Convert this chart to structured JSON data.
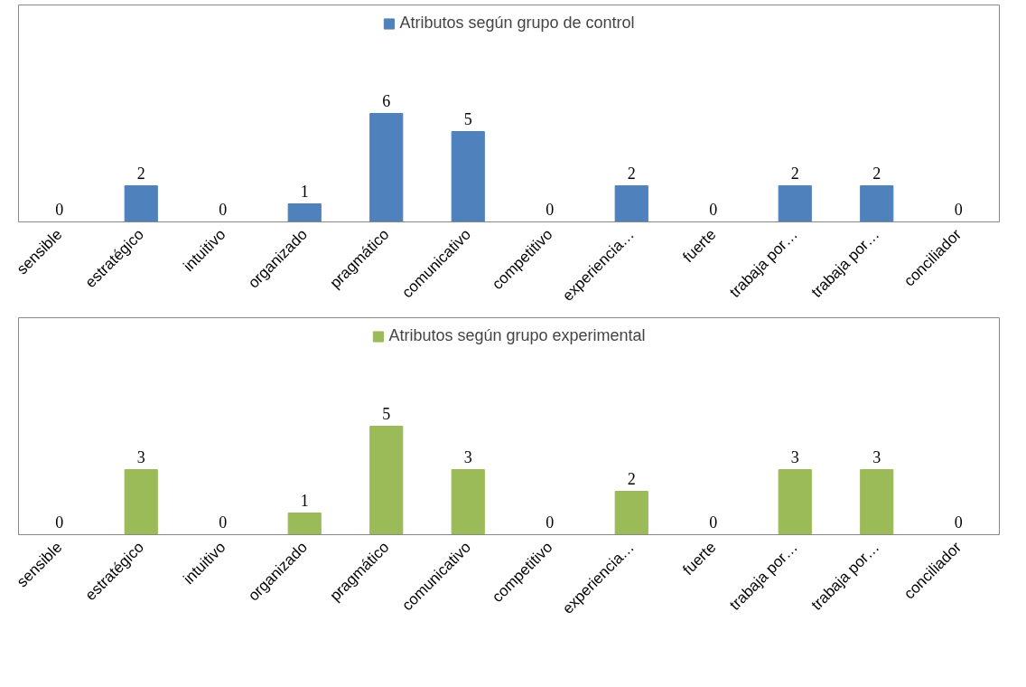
{
  "chart_data": [
    {
      "type": "bar",
      "categories": [
        "sensible",
        "estratégico",
        "intuitivo",
        "organizado",
        "pragmático",
        "comunicativo",
        "competitivo",
        "experiencia…",
        "fuerte",
        "trabaja por…",
        "trabaja por…",
        "conciliador"
      ],
      "series": [
        {
          "name": "Atributos según grupo de control",
          "color": "#4f81bd",
          "values": [
            0,
            2,
            0,
            1,
            6,
            5,
            0,
            2,
            0,
            2,
            2,
            0
          ]
        }
      ],
      "data_labels": true,
      "legend": "top",
      "tick_labels": "x",
      "grid": false
    },
    {
      "type": "bar",
      "categories": [
        "sensible",
        "estratégico",
        "intuitivo",
        "organizado",
        "pragmático",
        "comunicativo",
        "competitivo",
        "experiencia…",
        "fuerte",
        "trabaja por…",
        "trabaja por…",
        "conciliador"
      ],
      "series": [
        {
          "name": "Atributos según grupo experimental",
          "color": "#9bbb59",
          "values": [
            0,
            3,
            0,
            1,
            5,
            3,
            0,
            2,
            0,
            3,
            3,
            0
          ]
        }
      ],
      "data_labels": true,
      "legend": "top",
      "tick_labels": "x",
      "grid": false
    }
  ]
}
